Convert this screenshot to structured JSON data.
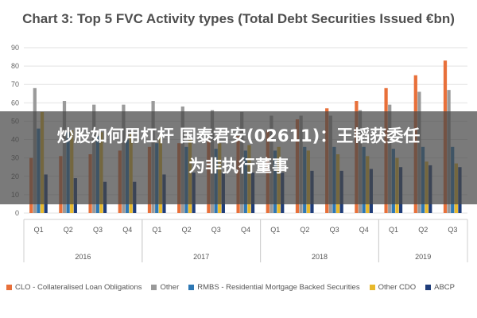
{
  "chart_data": {
    "type": "bar",
    "title": "Chart 3: Top 5 FVC Activity types (Total Debt Securities Issued €bn)",
    "xlabel": "",
    "ylabel": "",
    "ylim": [
      0,
      90
    ],
    "yticks": [
      0,
      10,
      20,
      30,
      40,
      50,
      60,
      70,
      80,
      90
    ],
    "grid": true,
    "legend_position": "bottom",
    "categories": [
      "Q1",
      "Q2",
      "Q3",
      "Q4",
      "Q1",
      "Q2",
      "Q3",
      "Q4",
      "Q1",
      "Q2",
      "Q3",
      "Q4",
      "Q1",
      "Q2",
      "Q3"
    ],
    "year_groups": [
      {
        "label": "2016",
        "start": 0,
        "end": 3
      },
      {
        "label": "2017",
        "start": 4,
        "end": 7
      },
      {
        "label": "2018",
        "start": 8,
        "end": 11
      },
      {
        "label": "2019",
        "start": 12,
        "end": 14
      }
    ],
    "series": [
      {
        "name": "CLO - Collateralised Loan Obligations",
        "color": "#e8703a",
        "values": [
          30,
          31,
          32,
          34,
          36,
          38,
          40,
          42,
          45,
          51,
          57,
          61,
          68,
          75,
          83
        ]
      },
      {
        "name": "Other",
        "color": "#9a9a9a",
        "values": [
          68,
          61,
          59,
          59,
          61,
          58,
          56,
          55,
          53,
          53,
          53,
          56,
          59,
          66,
          67
        ]
      },
      {
        "name": "RMBS - Residential Mortgage Backed Securities",
        "color": "#2e78b4",
        "values": [
          46,
          44,
          42,
          40,
          38,
          36,
          35,
          34,
          34,
          36,
          36,
          36,
          35,
          36,
          36
        ]
      },
      {
        "name": "Other CDO",
        "color": "#e8b92c",
        "values": [
          55,
          45,
          44,
          43,
          42,
          40,
          38,
          37,
          36,
          34,
          32,
          31,
          30,
          28,
          27
        ]
      },
      {
        "name": "ABCP",
        "color": "#1f3d7a",
        "values": [
          21,
          19,
          17,
          17,
          21,
          22,
          22,
          22,
          22,
          23,
          23,
          24,
          25,
          26,
          25
        ]
      }
    ]
  },
  "overlay": {
    "line1": "炒股如何用杠杆 国泰君安(02611)：王韬获委任",
    "line2": "为非执行董事"
  }
}
